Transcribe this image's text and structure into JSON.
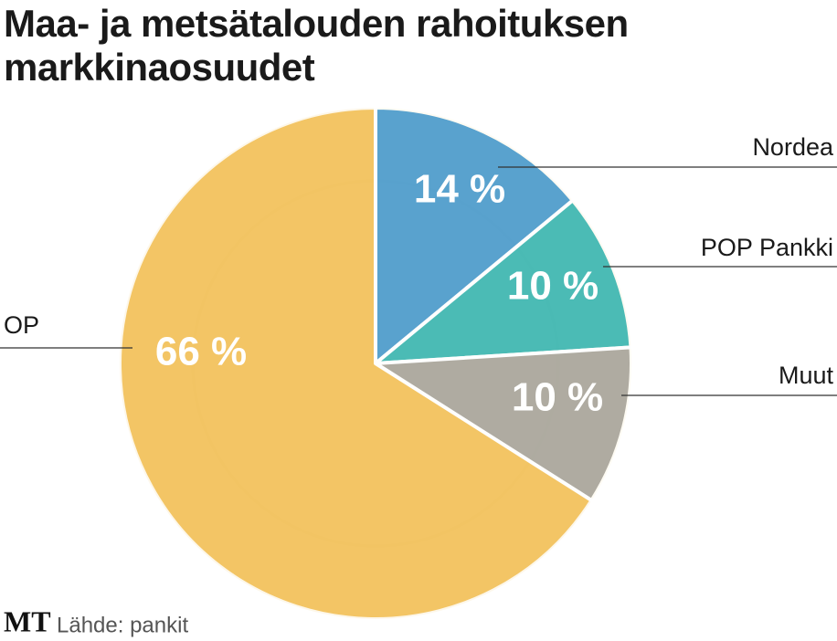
{
  "chart_data": {
    "type": "pie",
    "title": "Maa- ja metsätalouden rahoituksen markkinaosuudet",
    "categories": [
      "Nordea",
      "POP Pankki",
      "Muut",
      "OP"
    ],
    "values": [
      14,
      10,
      10,
      66
    ],
    "value_labels": [
      "14 %",
      "10 %",
      "10 %",
      "66 %"
    ],
    "colors": [
      "#4c9fd6",
      "#3dbabb",
      "#a9a9a6",
      "#f3c463"
    ],
    "logo": "MT",
    "source": "Lähde: pankit"
  }
}
